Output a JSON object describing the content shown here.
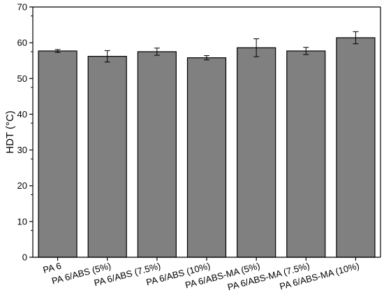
{
  "chart_data": {
    "type": "bar",
    "title": "",
    "xlabel": "",
    "ylabel": "HDT (°C)",
    "ylim": [
      0,
      70
    ],
    "yticks": [
      0,
      10,
      20,
      30,
      40,
      50,
      60,
      70
    ],
    "grid": false,
    "categories": [
      "PA 6",
      "PA 6/ABS (5%)",
      "PA 6/ABS (7.5%)",
      "PA 6/ABS (10%)",
      "PA 6/ABS-MA (5%)",
      "PA 6/ABS-MA (7.5%)",
      "PA 6/ABS-MA (10%)"
    ],
    "values": [
      57.7,
      56.2,
      57.5,
      55.8,
      58.6,
      57.7,
      61.4
    ],
    "errors": [
      0.4,
      1.6,
      1.0,
      0.6,
      2.5,
      1.0,
      1.7
    ],
    "colors": {
      "bar": "#808080",
      "edge": "#000000",
      "axis": "#000000"
    }
  }
}
